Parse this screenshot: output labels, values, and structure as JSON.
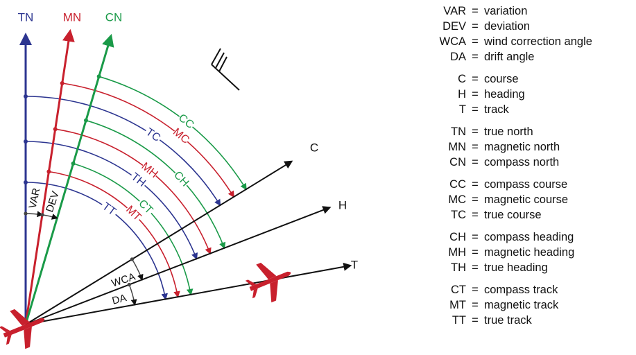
{
  "colors": {
    "true": "#2c3590",
    "magnetic": "#c8202d",
    "compass": "#1a9a48",
    "black": "#111111"
  },
  "north_labels": {
    "tn": "TN",
    "mn": "MN",
    "cn": "CN"
  },
  "ray_labels": {
    "c": "C",
    "h": "H",
    "t": "T"
  },
  "arc_labels": {
    "cc": "CC",
    "mc": "MC",
    "tc": "TC",
    "ch": "CH",
    "mh": "MH",
    "th": "TH",
    "ct": "CT",
    "mt": "MT",
    "tt": "TT"
  },
  "angle_labels": {
    "var": "VAR",
    "dev": "DEV",
    "wca": "WCA",
    "da": "DA"
  },
  "icons": {
    "aircraft": "aircraft-icon",
    "wind": "wind-barb-icon"
  },
  "legend": [
    [
      {
        "abbr": "VAR",
        "eq": "=",
        "def": "variation"
      },
      {
        "abbr": "DEV",
        "eq": "=",
        "def": "deviation"
      },
      {
        "abbr": "WCA",
        "eq": "=",
        "def": "wind correction angle"
      },
      {
        "abbr": "DA",
        "eq": "=",
        "def": "drift angle"
      }
    ],
    [
      {
        "abbr": "C",
        "eq": "=",
        "def": "course"
      },
      {
        "abbr": "H",
        "eq": "=",
        "def": "heading"
      },
      {
        "abbr": "T",
        "eq": "=",
        "def": "track"
      }
    ],
    [
      {
        "abbr": "TN",
        "eq": "=",
        "def": "true north"
      },
      {
        "abbr": "MN",
        "eq": "=",
        "def": "magnetic north"
      },
      {
        "abbr": "CN",
        "eq": "=",
        "def": "compass north"
      }
    ],
    [
      {
        "abbr": "CC",
        "eq": "=",
        "def": "compass course"
      },
      {
        "abbr": "MC",
        "eq": "=",
        "def": "magnetic course"
      },
      {
        "abbr": "TC",
        "eq": "=",
        "def": "true course"
      }
    ],
    [
      {
        "abbr": "CH",
        "eq": "=",
        "def": "compass heading"
      },
      {
        "abbr": "MH",
        "eq": "=",
        "def": "magnetic heading"
      },
      {
        "abbr": "TH",
        "eq": "=",
        "def": "true heading"
      }
    ],
    [
      {
        "abbr": "CT",
        "eq": "=",
        "def": "compass track"
      },
      {
        "abbr": "MT",
        "eq": "=",
        "def": "magnetic track"
      },
      {
        "abbr": "TT",
        "eq": "=",
        "def": "true track"
      }
    ]
  ]
}
